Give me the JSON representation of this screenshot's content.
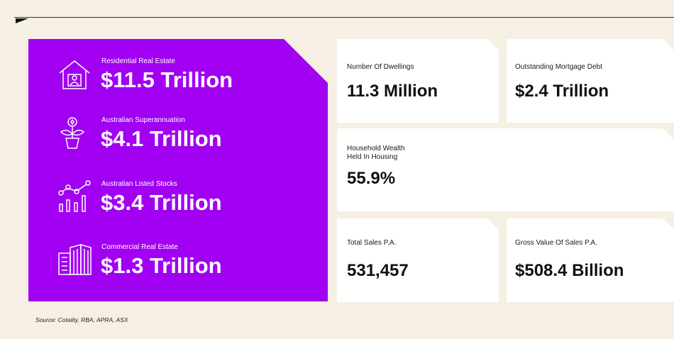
{
  "left_panel": {
    "items": [
      {
        "label": "Residential Real Estate",
        "value": "$11.5 Trillion",
        "icon": "house-person-icon"
      },
      {
        "label": "Australian Superannuation",
        "value": "$4.1 Trillion",
        "icon": "plant-coin-icon"
      },
      {
        "label": "Australian Listed Stocks",
        "value": "$3.4 Trillion",
        "icon": "bar-line-chart-icon"
      },
      {
        "label": "Commercial Real Estate",
        "value": "$1.3 Trillion",
        "icon": "office-buildings-icon"
      }
    ]
  },
  "cards": {
    "dwellings": {
      "label": "Number Of Dwellings",
      "value": "11.3 Million"
    },
    "mortgage": {
      "label": "Outstanding Mortgage Debt",
      "value": "$2.4 Trillion"
    },
    "housing_wealth": {
      "label_line1": "Household Wealth",
      "label_line2": "Held In Housing",
      "value": "55.9%"
    },
    "total_sales": {
      "label": "Total Sales P.A.",
      "value": "531,457"
    },
    "gross_value": {
      "label": "Gross Value Of Sales P.A.",
      "value": "$508.4 Billion"
    }
  },
  "source": "Source: Cotality, RBA, APRA, ASX",
  "colors": {
    "accent": "#a100f2",
    "background": "#f6efe4",
    "card": "#ffffff"
  }
}
